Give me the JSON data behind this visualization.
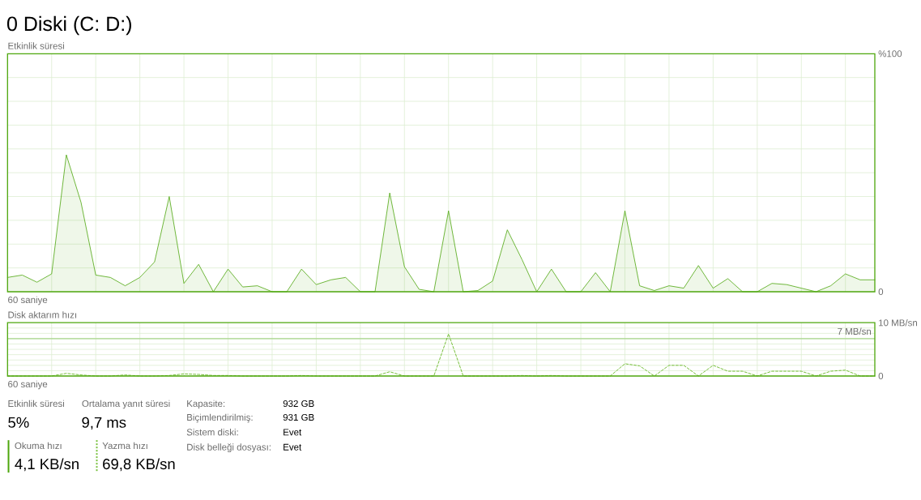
{
  "chart_data": [
    {
      "type": "area",
      "title": "0 Diski (C: D:)",
      "ylabel": "Etkinlik süresi",
      "xlabel": "60 saniye",
      "categories": [
        null,
        null,
        null,
        null,
        null,
        null,
        null,
        null,
        null,
        null,
        null,
        null,
        null,
        null,
        null,
        null,
        null,
        null,
        null,
        null,
        null,
        null,
        null,
        null,
        null,
        null,
        null,
        null,
        null,
        null,
        null,
        null,
        null,
        null,
        null,
        null,
        null,
        null,
        null,
        null,
        null,
        null,
        null,
        null,
        null,
        null,
        null,
        null,
        null,
        null,
        null,
        null,
        null,
        null,
        null,
        null,
        null,
        null,
        null,
        null
      ],
      "values": [
        6,
        7,
        4,
        7.5,
        57.5,
        37.5,
        7,
        6,
        2.5,
        6,
        12.5,
        40,
        3.5,
        11.5,
        0,
        9.5,
        2,
        2.5,
        0,
        0,
        9.5,
        3,
        5,
        6,
        0,
        0,
        41.5,
        10.5,
        1,
        0,
        34,
        0,
        0.5,
        4.5,
        26,
        13.5,
        0,
        9.5,
        0,
        0,
        8,
        0,
        34,
        2.5,
        0.5,
        2.5,
        1.5,
        11,
        1.5,
        5.5,
        0,
        0,
        3.5,
        3,
        1.5,
        0,
        2.5,
        7.5,
        5,
        5
      ],
      "color": "#4da60c",
      "ylim": [
        0,
        100
      ],
      "yticks": [
        {
          "value": 0,
          "label": "0"
        },
        {
          "value": 10,
          "label": null
        },
        {
          "value": 20,
          "label": null
        },
        {
          "value": 30,
          "label": null
        },
        {
          "value": 40,
          "label": null
        },
        {
          "value": 50,
          "label": null
        },
        {
          "value": 60,
          "label": null
        },
        {
          "value": 70,
          "label": null
        },
        {
          "value": 80,
          "label": null
        },
        {
          "value": 90,
          "label": null
        },
        {
          "value": 100,
          "label": "%100"
        }
      ],
      "grid": true
    },
    {
      "type": "line",
      "ylabel": "Disk aktarım hızı",
      "xlabel": "60 saniye",
      "categories": [
        null,
        null,
        null,
        null,
        null,
        null,
        null,
        null,
        null,
        null,
        null,
        null,
        null,
        null,
        null,
        null,
        null,
        null,
        null,
        null,
        null,
        null,
        null,
        null,
        null,
        null,
        null,
        null,
        null,
        null,
        null,
        null,
        null,
        null,
        null,
        null,
        null,
        null,
        null,
        null,
        null,
        null,
        null,
        null,
        null,
        null,
        null,
        null,
        null,
        null,
        null,
        null,
        null,
        null,
        null,
        null,
        null,
        null,
        null,
        null
      ],
      "values": [
        0,
        0,
        0,
        0,
        0.5,
        0.2,
        0,
        0,
        0.2,
        0,
        0,
        0.1,
        0.4,
        0.3,
        0.1,
        0.1,
        0,
        0,
        0,
        0,
        0.1,
        0,
        0,
        0,
        0,
        0,
        0.8,
        0,
        0,
        0,
        7.9,
        0,
        0,
        0,
        0,
        0.1,
        0,
        0.1,
        0,
        0,
        0,
        0,
        2.3,
        1.9,
        0,
        2,
        2,
        0,
        2,
        0.9,
        0.9,
        0,
        0.9,
        0.9,
        0.9,
        0,
        0.9,
        1.1,
        0,
        0
      ],
      "color": "#76bf3a",
      "line_style": "dashed",
      "ylim": [
        0,
        10
      ],
      "yticks": [
        {
          "value": 0,
          "label": "0"
        },
        {
          "value": 1,
          "label": null
        },
        {
          "value": 2,
          "label": null
        },
        {
          "value": 3,
          "label": null
        },
        {
          "value": 4,
          "label": null
        },
        {
          "value": 5,
          "label": null
        },
        {
          "value": 6,
          "label": null
        },
        {
          "value": 7,
          "label": null
        },
        {
          "value": 8,
          "label": null
        },
        {
          "value": 9,
          "label": null
        },
        {
          "value": 10,
          "label": "10 MB/sn"
        }
      ],
      "ref_lines": [
        {
          "axis": "y",
          "value": 7,
          "label": "7 MB/sn",
          "color": "#a8d68b"
        }
      ],
      "grid": true
    },
    {
      "type": "other",
      "annotations": [
        "Etkinlik süresi",
        "5%",
        "Ortalama yanıt süresi",
        "9,7 ms",
        "Okuma hızı",
        "4,1 KB/sn",
        "Yazma hızı",
        "69,8 KB/sn",
        "Kapasite:",
        "932 GB",
        "Biçimlendirilmiş:",
        "931 GB",
        "Sistem diski:",
        "Evet",
        "Disk belleği dosyası:",
        "Evet"
      ]
    }
  ]
}
